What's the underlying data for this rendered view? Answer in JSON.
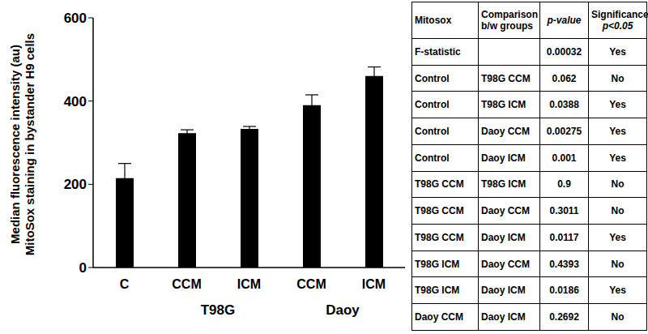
{
  "chart_data": {
    "type": "bar",
    "ylabel": [
      "Median fluorescence intensity (au)",
      "MitoSox staining in bystander H9 cells"
    ],
    "categories": [
      "C",
      "CCM",
      "ICM",
      "CCM",
      "ICM"
    ],
    "group": [
      null,
      "T98G",
      "T98G",
      "Daoy",
      "Daoy"
    ],
    "values": [
      215,
      323,
      333,
      390,
      460
    ],
    "errors": [
      35,
      8,
      6,
      25,
      22
    ],
    "color": "#000000",
    "ylim": [
      0,
      600
    ],
    "yticks": [
      0,
      200,
      400,
      600
    ],
    "grid": false
  },
  "table": {
    "header": [
      [
        "Mitosox"
      ],
      [
        "Comparison",
        "b/w groups"
      ],
      [
        "p-value"
      ],
      [
        "Significance",
        "p<0.05"
      ]
    ],
    "rows": [
      [
        "F-statistic",
        null,
        "0.00032",
        "Yes"
      ],
      [
        "Control",
        "T98G CCM",
        "0.062",
        "No"
      ],
      [
        "Control",
        "T98G ICM",
        "0.0388",
        "Yes"
      ],
      [
        "Control",
        "Daoy CCM",
        "0.00275",
        "Yes"
      ],
      [
        "Control",
        "Daoy ICM",
        "0.001",
        "Yes"
      ],
      [
        "T98G CCM",
        "T98G ICM",
        "0.9",
        "No"
      ],
      [
        "T98G CCM",
        "Daoy CCM",
        "0.3011",
        "No"
      ],
      [
        "T98G CCM",
        "Daoy ICM",
        "0.0117",
        "Yes"
      ],
      [
        "T98G ICM",
        "Daoy CCM",
        "0.4393",
        "No"
      ],
      [
        "T98G ICM",
        "Daoy ICM",
        "0.0186",
        "Yes"
      ],
      [
        "Daoy CCM",
        "Daoy ICM",
        "0.2692",
        "No"
      ]
    ]
  }
}
